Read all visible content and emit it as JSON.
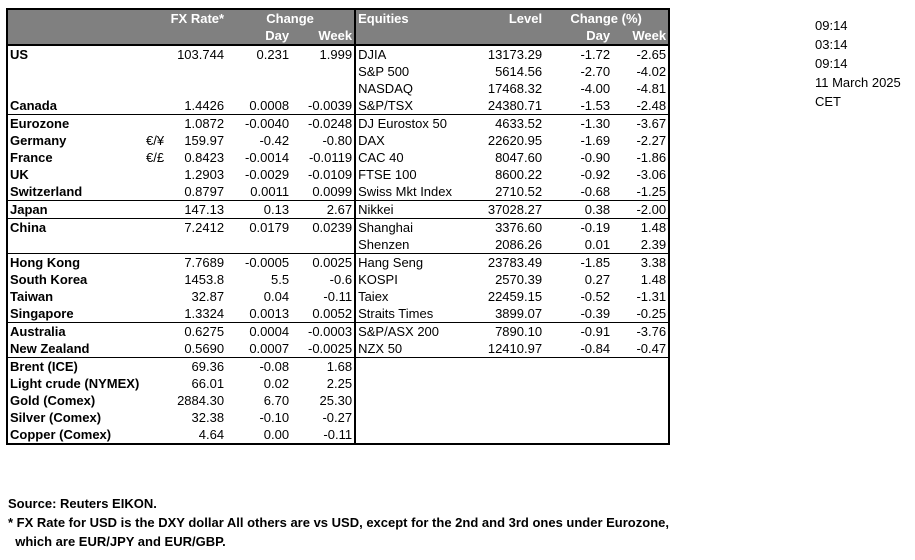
{
  "headers": {
    "fx_rate": "FX Rate*",
    "change": "Change",
    "day": "Day",
    "week": "Week",
    "equities": "Equities",
    "level": "Level",
    "change_pct": "Change (%)",
    "eq_day": "Day",
    "eq_week": "Week"
  },
  "rows": [
    {
      "country": "US",
      "sym": "",
      "fx": "103.744",
      "fxday": "0.231",
      "fxweek": "1.999",
      "eq": "DJIA",
      "lvl": "13173.29",
      "eqday": "-1.72",
      "eqweek": "-2.65",
      "group_start": true
    },
    {
      "country": "",
      "sym": "",
      "fx": "",
      "fxday": "",
      "fxweek": "",
      "eq": "S&P 500",
      "lvl": "5614.56",
      "eqday": "-2.70",
      "eqweek": "-4.02"
    },
    {
      "country": "",
      "sym": "",
      "fx": "",
      "fxday": "",
      "fxweek": "",
      "eq": "NASDAQ",
      "lvl": "17468.32",
      "eqday": "-4.00",
      "eqweek": "-4.81"
    },
    {
      "country": "Canada",
      "sym": "",
      "fx": "1.4426",
      "fxday": "0.0008",
      "fxweek": "-0.0039",
      "eq": "S&P/TSX",
      "lvl": "24380.71",
      "eqday": "-1.53",
      "eqweek": "-2.48"
    },
    {
      "country": "Eurozone",
      "sym": "",
      "fx": "1.0872",
      "fxday": "-0.0040",
      "fxweek": "-0.0248",
      "eq": "DJ Eurostox 50",
      "lvl": "4633.52",
      "eqday": "-1.30",
      "eqweek": "-3.67",
      "group_start": true
    },
    {
      "country": "Germany",
      "sub": true,
      "sym": "€/¥",
      "fx": "159.97",
      "fxday": "-0.42",
      "fxweek": "-0.80",
      "eq": "DAX",
      "lvl": "22620.95",
      "eqday": "-1.69",
      "eqweek": "-2.27"
    },
    {
      "country": "France",
      "sub": true,
      "sym": "€/£",
      "fx": "0.8423",
      "fxday": "-0.0014",
      "fxweek": "-0.0119",
      "eq": "CAC 40",
      "lvl": "8047.60",
      "eqday": "-0.90",
      "eqweek": "-1.86"
    },
    {
      "country": "UK",
      "sym": "",
      "fx": "1.2903",
      "fxday": "-0.0029",
      "fxweek": "-0.0109",
      "eq": "FTSE 100",
      "lvl": "8600.22",
      "eqday": "-0.92",
      "eqweek": "-3.06"
    },
    {
      "country": "Switzerland",
      "sym": "",
      "fx": "0.8797",
      "fxday": "0.0011",
      "fxweek": "0.0099",
      "eq": "Swiss Mkt Index",
      "lvl": "2710.52",
      "eqday": "-0.68",
      "eqweek": "-1.25"
    },
    {
      "country": "Japan",
      "sym": "",
      "fx": "147.13",
      "fxday": "0.13",
      "fxweek": "2.67",
      "eq": "Nikkei",
      "lvl": "37028.27",
      "eqday": "0.38",
      "eqweek": "-2.00",
      "group_start": true
    },
    {
      "country": "China",
      "sym": "",
      "fx": "7.2412",
      "fxday": "0.0179",
      "fxweek": "0.0239",
      "eq": "Shanghai",
      "lvl": "3376.60",
      "eqday": "-0.19",
      "eqweek": "1.48",
      "group_start": true
    },
    {
      "country": "",
      "sym": "",
      "fx": "",
      "fxday": "",
      "fxweek": "",
      "eq": "Shenzen",
      "lvl": "2086.26",
      "eqday": "0.01",
      "eqweek": "2.39"
    },
    {
      "country": "Hong Kong",
      "sym": "",
      "fx": "7.7689",
      "fxday": "-0.0005",
      "fxweek": "0.0025",
      "eq": "Hang Seng",
      "lvl": "23783.49",
      "eqday": "-1.85",
      "eqweek": "3.38",
      "group_start": true
    },
    {
      "country": "South Korea",
      "sym": "",
      "fx": "1453.8",
      "fxday": "5.5",
      "fxweek": "-0.6",
      "eq": "KOSPI",
      "lvl": "2570.39",
      "eqday": "0.27",
      "eqweek": "1.48"
    },
    {
      "country": "Taiwan",
      "sym": "",
      "fx": "32.87",
      "fxday": "0.04",
      "fxweek": "-0.11",
      "eq": "Taiex",
      "lvl": "22459.15",
      "eqday": "-0.52",
      "eqweek": "-1.31"
    },
    {
      "country": "Singapore",
      "sym": "",
      "fx": "1.3324",
      "fxday": "0.0013",
      "fxweek": "0.0052",
      "eq": "Straits Times",
      "lvl": "3899.07",
      "eqday": "-0.39",
      "eqweek": "-0.25"
    },
    {
      "country": "Australia",
      "sym": "",
      "fx": "0.6275",
      "fxday": "0.0004",
      "fxweek": "-0.0003",
      "eq": "S&P/ASX  200",
      "lvl": "7890.10",
      "eqday": "-0.91",
      "eqweek": "-3.76",
      "group_start": true
    },
    {
      "country": "New Zealand",
      "sym": "",
      "fx": "0.5690",
      "fxday": "0.0007",
      "fxweek": "-0.0025",
      "eq": "NZX 50",
      "lvl": "12410.97",
      "eqday": "-0.84",
      "eqweek": "-0.47"
    },
    {
      "country": "Brent (ICE)",
      "sym": "",
      "fx": "69.36",
      "fxday": "-0.08",
      "fxweek": "1.68",
      "eq": "",
      "lvl": "",
      "eqday": "",
      "eqweek": "",
      "group_start": true
    },
    {
      "country": "Light crude (NYMEX)",
      "sym": "",
      "fx": "66.01",
      "fxday": "0.02",
      "fxweek": "2.25",
      "eq": "",
      "lvl": "",
      "eqday": "",
      "eqweek": ""
    },
    {
      "country": "Gold (Comex)",
      "sym": "",
      "fx": "2884.30",
      "fxday": "6.70",
      "fxweek": "25.30",
      "eq": "",
      "lvl": "",
      "eqday": "",
      "eqweek": ""
    },
    {
      "country": "Silver (Comex)",
      "sym": "",
      "fx": "32.38",
      "fxday": "-0.10",
      "fxweek": "-0.27",
      "eq": "",
      "lvl": "",
      "eqday": "",
      "eqweek": ""
    },
    {
      "country": "Copper (Comex)",
      "sym": "",
      "fx": "4.64",
      "fxday": "0.00",
      "fxweek": "-0.11",
      "eq": "",
      "lvl": "",
      "eqday": "",
      "eqweek": ""
    }
  ],
  "side_info": [
    "09:14",
    "03:14",
    "09:14",
    "11 March 2025",
    "CET"
  ],
  "notes": [
    "Source:  Reuters EIKON.",
    "* FX Rate for USD is the DXY dollar  All others are vs USD, except for the 2nd and 3rd ones under Eurozone,",
    "  which are EUR/JPY and EUR/GBP."
  ]
}
